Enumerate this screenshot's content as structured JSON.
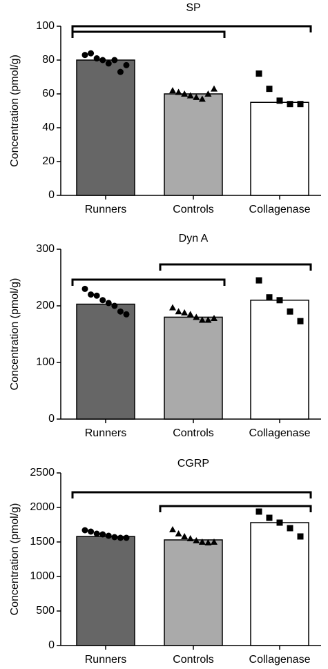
{
  "chart_data": [
    {
      "type": "bar",
      "title": "SP",
      "y_label": "Concentration (pmol/g)",
      "categories": [
        "Runners",
        "Controls",
        "Collagenase"
      ],
      "values": [
        80,
        60,
        55
      ],
      "points": [
        [
          83,
          84,
          81,
          80,
          78,
          80,
          73,
          77
        ],
        [
          62,
          61,
          60,
          59,
          58,
          57,
          60,
          63
        ],
        [
          72,
          63,
          56,
          54,
          54
        ]
      ],
      "colors": [
        "#666666",
        "#aaaaaa",
        "#ffffff"
      ],
      "markers": [
        "circle",
        "triangle",
        "square"
      ],
      "brackets": [
        [
          0,
          2
        ],
        [
          0,
          1
        ]
      ],
      "ylim": [
        0,
        100
      ],
      "yticks": [
        0,
        20,
        40,
        60,
        80,
        100
      ]
    },
    {
      "type": "bar",
      "title": "Dyn A",
      "y_label": "Concentration (pmol/g)",
      "categories": [
        "Runners",
        "Controls",
        "Collagenase"
      ],
      "values": [
        203,
        180,
        210
      ],
      "points": [
        [
          230,
          220,
          218,
          210,
          205,
          200,
          190,
          185
        ],
        [
          197,
          190,
          188,
          185,
          180,
          175,
          175,
          178
        ],
        [
          245,
          215,
          210,
          190,
          173
        ]
      ],
      "colors": [
        "#666666",
        "#aaaaaa",
        "#ffffff"
      ],
      "markers": [
        "circle",
        "triangle",
        "square"
      ],
      "brackets": [
        [
          1,
          2
        ],
        [
          0,
          1
        ]
      ],
      "ylim": [
        0,
        300
      ],
      "yticks": [
        0,
        100,
        200,
        300
      ]
    },
    {
      "type": "bar",
      "title": "CGRP",
      "y_label": "Concentration (pmol/g)",
      "categories": [
        "Runners",
        "Controls",
        "Collagenase"
      ],
      "values": [
        1580,
        1530,
        1780
      ],
      "points": [
        [
          1670,
          1650,
          1620,
          1610,
          1590,
          1570,
          1560,
          1560
        ],
        [
          1680,
          1620,
          1580,
          1550,
          1520,
          1500,
          1490,
          1500
        ],
        [
          1940,
          1850,
          1780,
          1700,
          1580
        ]
      ],
      "colors": [
        "#666666",
        "#aaaaaa",
        "#ffffff"
      ],
      "markers": [
        "circle",
        "triangle",
        "square"
      ],
      "brackets": [
        [
          0,
          2
        ],
        [
          1,
          2
        ]
      ],
      "ylim": [
        0,
        2500
      ],
      "yticks": [
        0,
        500,
        1000,
        1500,
        2000,
        2500
      ]
    }
  ]
}
